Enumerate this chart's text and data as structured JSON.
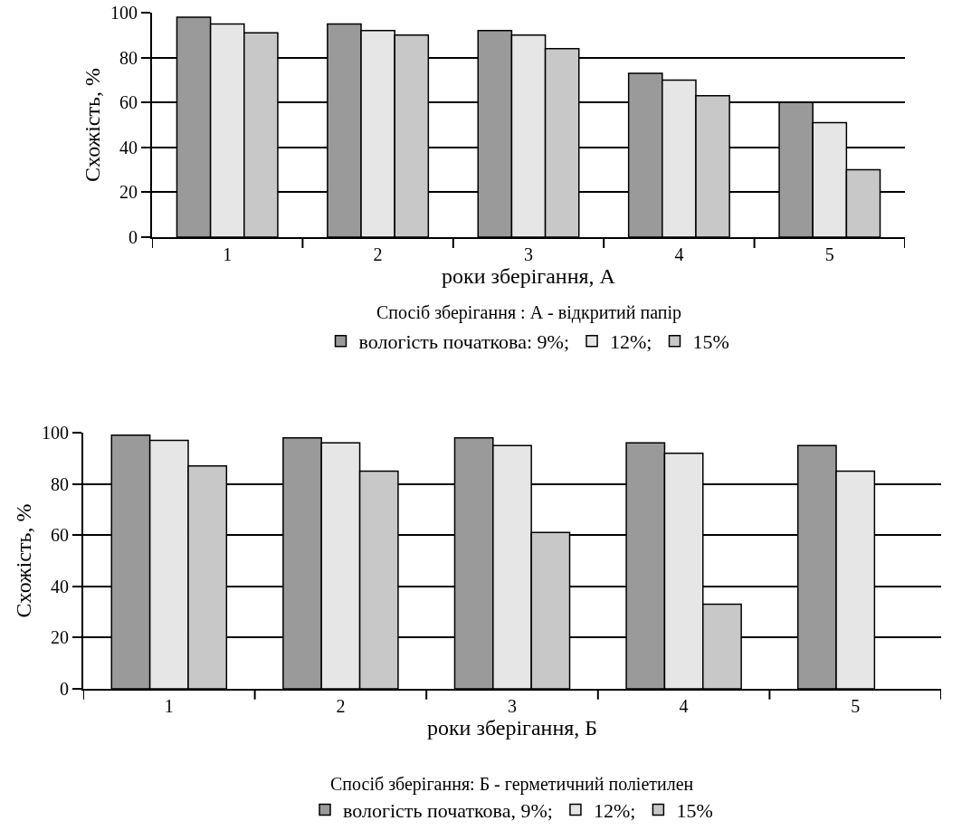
{
  "chart_data": [
    {
      "type": "bar",
      "categories": [
        "1",
        "2",
        "3",
        "4",
        "5"
      ],
      "xlabel": "роки зберігання, А",
      "ylabel": "Схожість, %",
      "annotations": [
        "Спосіб зберігання : А - відкритий папір"
      ],
      "ylim": [
        0,
        100
      ],
      "yticks": [
        0,
        20,
        40,
        60,
        80,
        100
      ],
      "grid": "y",
      "legend": "bottom",
      "series": [
        {
          "name": "вологість початкова: 9%;",
          "color": "#9a9a9a",
          "values": [
            98,
            95,
            92,
            73,
            60
          ]
        },
        {
          "name": "12%;",
          "color": "#e6e6e6",
          "values": [
            95,
            92,
            90,
            70,
            51
          ]
        },
        {
          "name": "15%",
          "color": "#c8c8c8",
          "values": [
            91,
            90,
            84,
            63,
            30
          ]
        }
      ]
    },
    {
      "type": "bar",
      "categories": [
        "1",
        "2",
        "3",
        "4",
        "5"
      ],
      "xlabel": "роки зберігання, Б",
      "ylabel": "Схожість, %",
      "annotations": [
        "Спосіб зберігання: Б - герметичний поліетилен"
      ],
      "ylim": [
        0,
        100
      ],
      "yticks": [
        0,
        20,
        40,
        60,
        80,
        100
      ],
      "grid": "y",
      "legend": "bottom",
      "series": [
        {
          "name": "вологість початкова, 9%;",
          "color": "#9a9a9a",
          "values": [
            99,
            98,
            98,
            96,
            95
          ]
        },
        {
          "name": "12%;",
          "color": "#e6e6e6",
          "values": [
            97,
            96,
            95,
            92,
            85
          ]
        },
        {
          "name": "15%",
          "color": "#c8c8c8",
          "values": [
            87,
            85,
            61,
            33,
            null
          ]
        }
      ]
    }
  ]
}
